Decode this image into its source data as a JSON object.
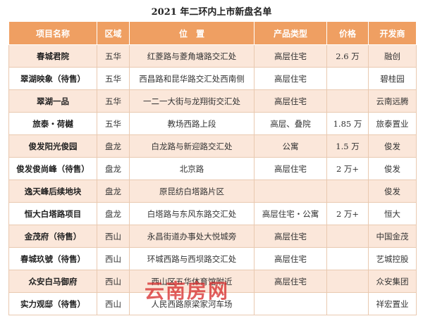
{
  "title": "2021 年二环内上市新盘名单",
  "table": {
    "header": [
      "项目名称",
      "区域",
      "位　置",
      "产品类型",
      "价格",
      "开发商"
    ],
    "rows": [
      [
        "春城君院",
        "五华",
        "红菱路与菱角塘路交汇处",
        "高层住宅",
        "2.6 万",
        "融创"
      ],
      [
        "翠湖映象（待售）",
        "五华",
        "西昌路和昆华路交汇处西南侧",
        "高层住宅",
        null,
        "碧桂园"
      ],
      [
        "翠湖一品",
        "五华",
        "一二一大街与龙翔街交汇处",
        "高层住宅",
        null,
        "云南远腾"
      ],
      [
        "旅泰・荷樾",
        "五华",
        "教场西路上段",
        "高层、叠院",
        "1.85 万",
        "旅泰置业"
      ],
      [
        "俊发阳光俊园",
        "盘龙",
        "白龙路与新迎路交汇处",
        "公寓",
        "1.5 万",
        "俊发"
      ],
      [
        "俊发俊尚峰（待售）",
        "盘龙",
        "北京路",
        "高层住宅",
        "2 万+",
        "俊发"
      ],
      [
        "逸天峰后续地块",
        "盘龙",
        "原昆纺白塔路片区",
        null,
        null,
        "俊发"
      ],
      [
        "恒大白塔路项目",
        "盘龙",
        "白塔路与东风东路交汇处",
        "高层住宅・公寓",
        "2 万+",
        "恒大"
      ],
      [
        "金茂府（待售）",
        "西山",
        "永昌街道办事处大悦城旁",
        "高层住宅",
        null,
        "中国金茂"
      ],
      [
        "春城玖號（待售）",
        "西山",
        "环城西路与西坝路交汇处",
        "高层住宅",
        null,
        "艺城控股"
      ],
      [
        "众安白马御府",
        "西山",
        "西山区五华体育馆附近",
        "高层住宅",
        null,
        "众安集团"
      ],
      [
        "实力观邸（待售）",
        "西山",
        "人民西路原梁家河车场",
        null,
        null,
        "祥宏置业"
      ]
    ]
  },
  "watermark": "云南房网"
}
